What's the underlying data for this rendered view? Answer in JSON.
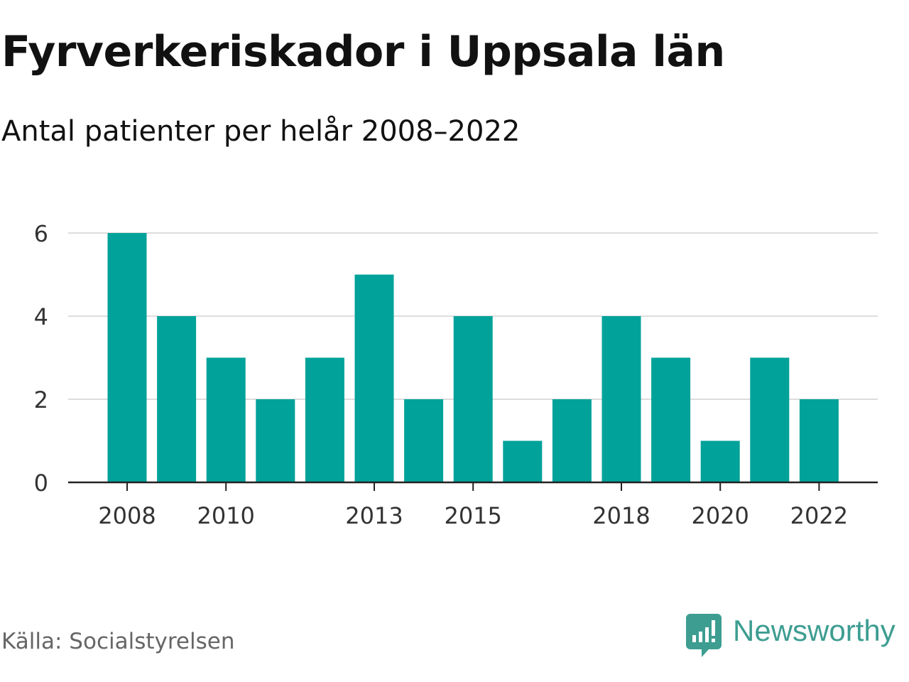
{
  "header": {
    "title": "Fyrverkeriskador i Uppsala län",
    "subtitle": "Antal patienter per helår 2008–2022"
  },
  "footer": {
    "source": "Källa: Socialstyrelsen",
    "brand": "Newsworthy",
    "brand_icon": "newsworthy-logo-icon"
  },
  "colors": {
    "bar": "#00a29a",
    "grid": "#dddddd",
    "axis": "#222222",
    "tick_text": "#333333",
    "brand": "#3d9d91"
  },
  "chart_data": {
    "type": "bar",
    "categories": [
      "2008",
      "2009",
      "2010",
      "2011",
      "2012",
      "2013",
      "2014",
      "2015",
      "2016",
      "2017",
      "2018",
      "2019",
      "2020",
      "2021",
      "2022"
    ],
    "values": [
      6,
      4,
      3,
      2,
      3,
      5,
      2,
      4,
      1,
      2,
      4,
      3,
      1,
      3,
      2
    ],
    "x_tick_labels": [
      "2008",
      "2010",
      "2013",
      "2015",
      "2018",
      "2020",
      "2022"
    ],
    "y_ticks": [
      0,
      2,
      4,
      6
    ],
    "ylim": [
      0,
      6
    ],
    "grid": true
  }
}
